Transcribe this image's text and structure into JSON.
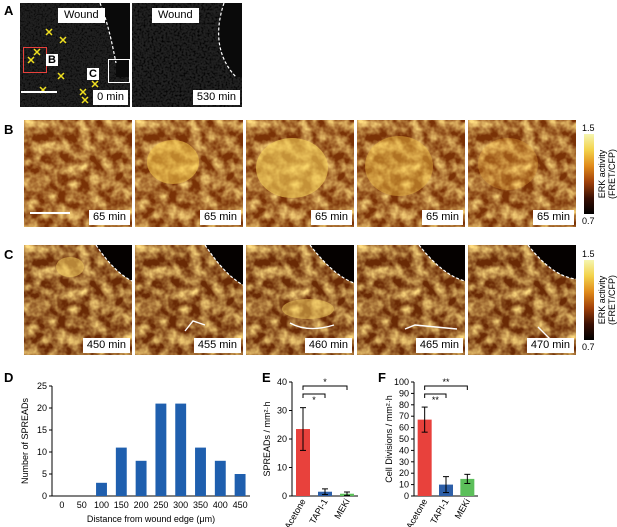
{
  "panel_letters": {
    "a": "A",
    "b": "B",
    "c": "C",
    "d": "D",
    "e": "E",
    "f": "F"
  },
  "panelA": {
    "left": {
      "label": "Wound",
      "time": "0 min",
      "inset_b": "B",
      "inset_c": "C"
    },
    "right": {
      "label": "Wound",
      "time": "530 min"
    }
  },
  "panelB": {
    "times": [
      "65 min",
      "65 min",
      "65 min",
      "65 min",
      "65 min"
    ]
  },
  "panelC": {
    "times": [
      "450 min",
      "455 min",
      "460 min",
      "465 min",
      "470 min"
    ]
  },
  "colorbar": {
    "max": "1.5",
    "min": "0.7",
    "label_line1": "ERK activity",
    "label_line2": "(FRET/CFP)"
  },
  "colors": {
    "hist_bar": "#1f5fae",
    "acetone": "#e8413c",
    "tapi": "#2d5fa8",
    "meki": "#5cbf5a",
    "inset_b_box": "#e8413c",
    "markers": "#f0e020"
  },
  "chart_data": [
    {
      "type": "bar",
      "title": "",
      "categories": [
        "0",
        "50",
        "100",
        "150",
        "200",
        "250",
        "300",
        "350",
        "400",
        "450"
      ],
      "values": [
        0,
        0,
        3,
        11,
        8,
        21,
        21,
        11,
        8,
        5
      ],
      "xlabel": "Distance from wound edge (μm)",
      "ylabel": "Number of SPREADs",
      "ylim": [
        0,
        25
      ],
      "yticks": [
        "0",
        "5",
        "10",
        "15",
        "20",
        "25"
      ]
    },
    {
      "type": "bar",
      "title": "",
      "categories": [
        "Acetone",
        "TAPI-1",
        "MEKi"
      ],
      "values": [
        23.5,
        1.5,
        0.8
      ],
      "errors": [
        7.5,
        1.0,
        0.6
      ],
      "ylabel": "SPREADs / mm²·h",
      "ylim": [
        0,
        40
      ],
      "yticks": [
        "0",
        "10",
        "20",
        "30",
        "40"
      ],
      "significance": [
        "*",
        "*"
      ]
    },
    {
      "type": "bar",
      "title": "",
      "categories": [
        "Acetone",
        "TAPI-1",
        "MEKi"
      ],
      "values": [
        67,
        10,
        15
      ],
      "errors": [
        11,
        7,
        4
      ],
      "ylabel": "Cell Divisions / mm²·h",
      "ylim": [
        0,
        100
      ],
      "yticks": [
        "0",
        "10",
        "20",
        "30",
        "40",
        "50",
        "60",
        "70",
        "80",
        "90",
        "100"
      ],
      "significance": [
        "**",
        "**"
      ]
    }
  ]
}
